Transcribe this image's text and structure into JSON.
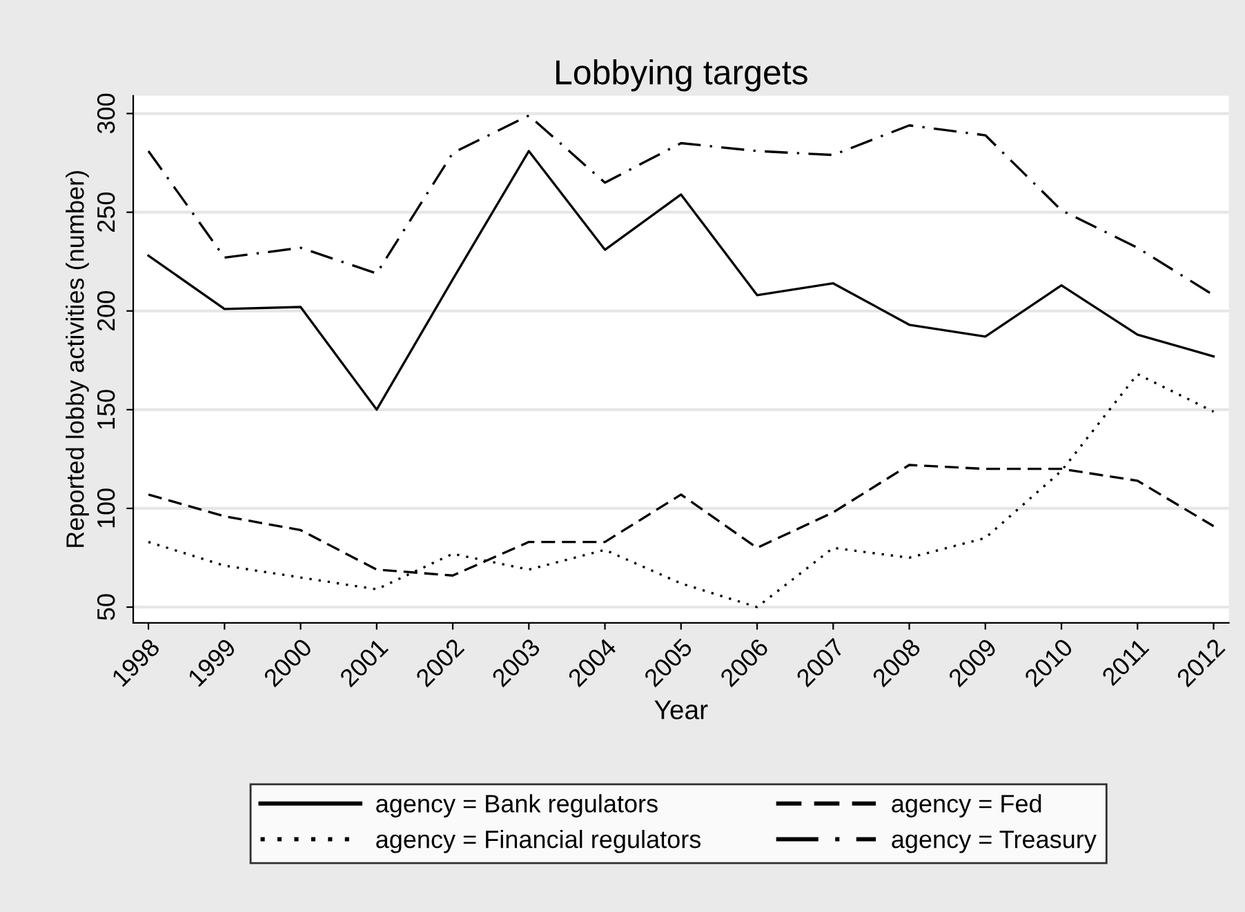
{
  "chart_data": {
    "type": "line",
    "title": "Lobbying targets",
    "xlabel": "Year",
    "ylabel": "Reported lobby activities (number)",
    "x": [
      1998,
      1999,
      2000,
      2001,
      2002,
      2003,
      2004,
      2005,
      2006,
      2007,
      2008,
      2009,
      2010,
      2011,
      2012
    ],
    "series": [
      {
        "name": "agency = Bank regulators",
        "color": "#000000",
        "line_style": "solid",
        "values": [
          228,
          201,
          202,
          150,
          216,
          281,
          231,
          259,
          208,
          214,
          193,
          187,
          213,
          188,
          177
        ]
      },
      {
        "name": "agency = Fed",
        "color": "#000000",
        "line_style": "dashed",
        "values": [
          107,
          96,
          89,
          69,
          66,
          83,
          83,
          107,
          80,
          98,
          122,
          120,
          120,
          114,
          91
        ]
      },
      {
        "name": "agency = Financial regulators",
        "color": "#000000",
        "line_style": "dotted",
        "values": [
          83,
          71,
          65,
          59,
          77,
          69,
          79,
          62,
          50,
          80,
          75,
          85,
          119,
          168,
          149
        ]
      },
      {
        "name": "agency = Treasury",
        "color": "#000000",
        "line_style": "dashdot",
        "values": [
          281,
          227,
          232,
          219,
          280,
          299,
          265,
          285,
          281,
          279,
          294,
          289,
          251,
          232,
          208
        ]
      }
    ],
    "xlim": [
      1997.8,
      2012.2
    ],
    "xticks": [
      1998,
      1999,
      2000,
      2001,
      2002,
      2003,
      2004,
      2005,
      2006,
      2007,
      2008,
      2009,
      2010,
      2011,
      2012
    ],
    "ylim": [
      42,
      309
    ],
    "yticks": [
      50,
      100,
      150,
      200,
      250,
      300
    ],
    "grid": "y",
    "legend": "bottom"
  }
}
